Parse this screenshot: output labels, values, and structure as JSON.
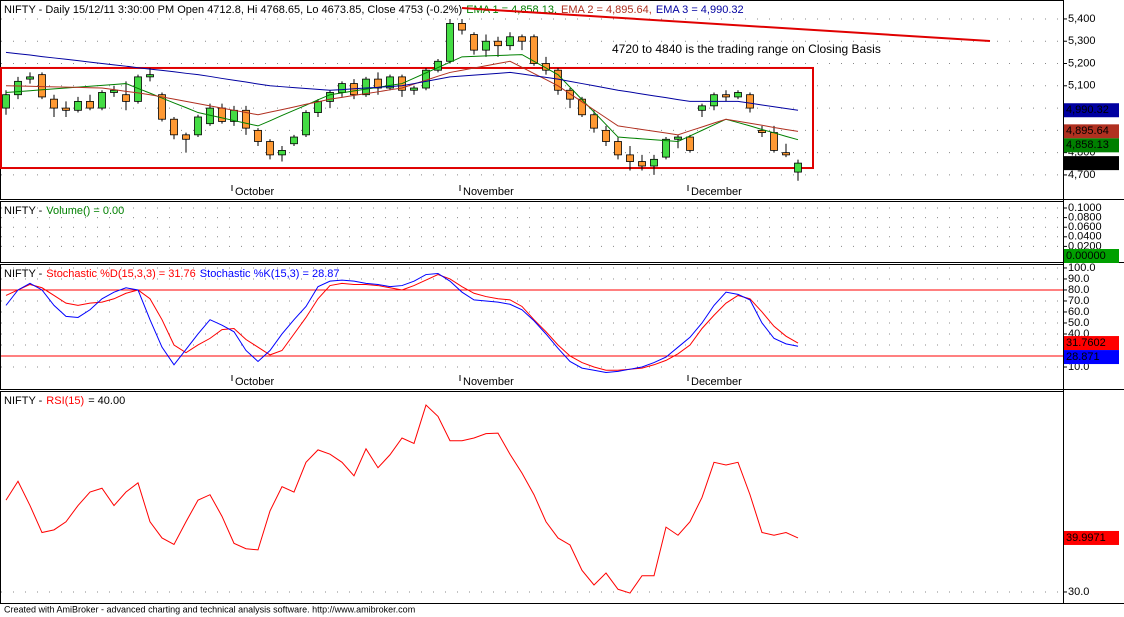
{
  "chart_data": [
    {
      "type": "candlestick",
      "title": "NIFTY - Daily 15/12/11 3:30:00 PM Open 4712.8, Hi 4768.65, Lo 4673.85, Close 4753 (-0.2%)",
      "categories": [
        null,
        null,
        null,
        null,
        null,
        null,
        null,
        null,
        null,
        null,
        null,
        null,
        null,
        null,
        null,
        null,
        null,
        null,
        null,
        "October",
        null,
        null,
        null,
        null,
        null,
        null,
        null,
        null,
        null,
        null,
        null,
        null,
        null,
        null,
        null,
        null,
        null,
        null,
        "November",
        null,
        null,
        null,
        null,
        null,
        null,
        null,
        null,
        null,
        null,
        null,
        null,
        null,
        null,
        null,
        null,
        null,
        null,
        "December",
        null,
        null,
        null,
        null,
        null,
        null,
        null,
        null,
        null
      ],
      "open": [
        5000,
        5060,
        5130,
        5150,
        5040,
        5000,
        4990,
        5030,
        5000,
        5070,
        5060,
        5030,
        5140,
        5060,
        4950,
        4880,
        4880,
        4930,
        5000,
        4940,
        4990,
        4900,
        4850,
        4790,
        4840,
        4880,
        4980,
        5030,
        5070,
        5110,
        5060,
        5130,
        5090,
        5140,
        5080,
        5090,
        5170,
        5210,
        5380,
        5330,
        5260,
        5300,
        5280,
        5320,
        5320,
        5200,
        5170,
        5080,
        5040,
        4970,
        4900,
        4850,
        4790,
        4760,
        4740,
        4780,
        4860,
        4870,
        4990,
        5010,
        5060,
        5050,
        5060,
        4900,
        4890,
        4800,
        4712.8
      ],
      "high": [
        5080,
        5140,
        5160,
        5160,
        5060,
        5030,
        5050,
        5060,
        5080,
        5100,
        5120,
        5150,
        5180,
        5070,
        4960,
        4890,
        4970,
        5020,
        5020,
        5010,
        5010,
        4910,
        4860,
        4830,
        4880,
        4990,
        5040,
        5080,
        5120,
        5130,
        5140,
        5160,
        5150,
        5150,
        5100,
        5180,
        5220,
        5400,
        5400,
        5340,
        5330,
        5320,
        5340,
        5330,
        5330,
        5230,
        5180,
        5090,
        5050,
        4990,
        4920,
        4870,
        4830,
        4790,
        4790,
        4870,
        4880,
        4880,
        5020,
        5070,
        5080,
        5080,
        5070,
        4920,
        4920,
        4840,
        4768.65
      ],
      "low": [
        4970,
        5040,
        5110,
        5040,
        4960,
        4960,
        4980,
        4990,
        4990,
        5050,
        4990,
        5020,
        5120,
        4940,
        4860,
        4800,
        4870,
        4920,
        4930,
        4920,
        4880,
        4830,
        4770,
        4760,
        4830,
        4870,
        4960,
        5000,
        5050,
        5040,
        5050,
        5060,
        5080,
        5050,
        5060,
        5080,
        5160,
        5200,
        5330,
        5240,
        5230,
        5230,
        5260,
        5260,
        5190,
        5150,
        5060,
        5000,
        4960,
        4890,
        4830,
        4770,
        4720,
        4720,
        4700,
        4770,
        4820,
        4800,
        4960,
        4990,
        5030,
        5040,
        4980,
        4870,
        4800,
        4780,
        4673.85
      ],
      "close": [
        5060,
        5120,
        5140,
        5050,
        5000,
        4990,
        5030,
        5000,
        5070,
        5080,
        5030,
        5140,
        5150,
        4950,
        4880,
        4860,
        4960,
        5000,
        4940,
        4990,
        4910,
        4850,
        4790,
        4810,
        4870,
        4980,
        5030,
        5070,
        5110,
        5060,
        5130,
        5090,
        5140,
        5080,
        5090,
        5170,
        5210,
        5380,
        5350,
        5260,
        5300,
        5280,
        5320,
        5300,
        5200,
        5170,
        5080,
        5040,
        4970,
        4910,
        4850,
        4790,
        4760,
        4740,
        4770,
        4860,
        4870,
        4810,
        5010,
        5060,
        5050,
        5070,
        5000,
        4890,
        4810,
        4790,
        4753
      ],
      "close_label": "4,753",
      "color_up": "#44dd44",
      "color_down": "#ff9933",
      "series": [
        {
          "name": "EMA 1 = 4,858.13,",
          "color": "#008000",
          "value_label": "4,858.13",
          "values": [
            5070,
            5074,
            5078,
            5082,
            5086,
            5090,
            5094,
            5098,
            5102,
            5106,
            5110,
            5088,
            5067,
            5045,
            5023,
            5002,
            4980,
            4968,
            4956,
            4944,
            4932,
            4920,
            4943,
            4967,
            4990,
            5013,
            5037,
            5060,
            5068,
            5077,
            5085,
            5093,
            5102,
            5110,
            5134,
            5158,
            5182,
            5206,
            5230,
            5232,
            5234,
            5236,
            5238,
            5240,
            5210,
            5180,
            5150,
            5094,
            5038,
            4982,
            4926,
            4870,
            4866,
            4862,
            4858,
            4854,
            4850,
            4875,
            4900,
            4925,
            4950,
            4935,
            4920,
            4904,
            4889,
            4873,
            4858.13
          ]
        },
        {
          "name": "EMA 2 = 4,895.64,",
          "color": "#b03020",
          "value_label": "4,895.64",
          "values": [
            5100,
            5099,
            5098,
            5096,
            5095,
            5094,
            5093,
            5091,
            5090,
            5083,
            5075,
            5068,
            5060,
            5050,
            5040,
            5030,
            5020,
            5010,
            5000,
            4990,
            4980,
            4970,
            4982,
            4993,
            5005,
            5017,
            5028,
            5040,
            5048,
            5057,
            5065,
            5073,
            5082,
            5090,
            5108,
            5125,
            5143,
            5160,
            5170,
            5180,
            5190,
            5200,
            5210,
            5183,
            5155,
            5128,
            5100,
            5064,
            5028,
            4992,
            4956,
            4920,
            4912,
            4904,
            4896,
            4888,
            4880,
            4898,
            4915,
            4933,
            4950,
            4941,
            4932,
            4923,
            4913,
            4904,
            4895.64
          ]
        },
        {
          "name": "EMA 3 = 4,990.32",
          "color": "#0000a0",
          "value_label": "4,990.32",
          "values": [
            5250,
            5244,
            5238,
            5231,
            5225,
            5219,
            5213,
            5206,
            5200,
            5194,
            5188,
            5181,
            5175,
            5169,
            5163,
            5156,
            5150,
            5142,
            5133,
            5125,
            5117,
            5108,
            5100,
            5096,
            5092,
            5088,
            5084,
            5080,
            5083,
            5087,
            5090,
            5093,
            5097,
            5100,
            5110,
            5120,
            5130,
            5140,
            5144,
            5148,
            5152,
            5156,
            5160,
            5153,
            5145,
            5138,
            5130,
            5120,
            5110,
            5100,
            5090,
            5080,
            5072,
            5063,
            5055,
            5047,
            5038,
            5030,
            5030,
            5030,
            5030,
            5030,
            5022,
            5014,
            5006,
            4998,
            4990.32
          ]
        }
      ],
      "annotation": {
        "text": "4720 to 4840 is the trading range on Closing Basis",
        "color": "#e00000"
      },
      "range_box": {
        "ylim": [
          4731,
          5180
        ],
        "color": "#e00000"
      },
      "trendline": {
        "x": [
          38,
          82
        ],
        "y": [
          5449,
          5301
        ],
        "color": "#e00000"
      },
      "ylim": [
        4592,
        5485
      ],
      "yticks": [
        {
          "value": 4700,
          "label": "4,700"
        },
        {
          "value": 4800,
          "label": "4,800"
        },
        {
          "value": 4900,
          "label": "4,900"
        },
        {
          "value": 5000,
          "label": "5,000"
        },
        {
          "value": 5100,
          "label": "5,100"
        },
        {
          "value": 5200,
          "label": "5,200"
        },
        {
          "value": 5300,
          "label": "5,300"
        },
        {
          "value": 5400,
          "label": "5,400"
        }
      ],
      "grid": true
    },
    {
      "type": "volume",
      "title": "NIFTY -",
      "series": [
        {
          "name": "Volume() = 0.00",
          "color": "#008000"
        }
      ],
      "last_value": 0,
      "last_value_label": "0.00000",
      "last_value_color": "#00a000",
      "ylim": [
        -0.0125,
        0.1146
      ],
      "yticks": [
        {
          "value": 0.02,
          "label": "0.0200"
        },
        {
          "value": 0.04,
          "label": "0.0400"
        },
        {
          "value": 0.06,
          "label": "0.0600"
        },
        {
          "value": 0.08,
          "label": "0.0800"
        },
        {
          "value": 0.1,
          "label": "0.1000"
        }
      ],
      "grid": true
    },
    {
      "type": "line",
      "title": "NIFTY -",
      "categories": [
        null,
        null,
        null,
        null,
        null,
        null,
        null,
        null,
        null,
        null,
        null,
        null,
        null,
        null,
        null,
        null,
        null,
        null,
        null,
        "October",
        null,
        null,
        null,
        null,
        null,
        null,
        null,
        null,
        null,
        null,
        null,
        null,
        null,
        null,
        null,
        null,
        null,
        null,
        "November",
        null,
        null,
        null,
        null,
        null,
        null,
        null,
        null,
        null,
        null,
        null,
        null,
        null,
        null,
        null,
        null,
        null,
        null,
        "December",
        null,
        null,
        null,
        null,
        null,
        null,
        null,
        null,
        null
      ],
      "series": [
        {
          "name": "Stochastic %D(15,3,3) = 31.76",
          "color": "#ff0000",
          "value_label": "31.7602",
          "values": [
            75,
            80,
            85,
            82,
            75,
            68,
            66,
            68,
            69,
            72,
            77,
            80,
            72,
            53,
            30,
            23,
            30,
            36,
            44,
            45,
            35,
            28,
            21,
            25,
            40,
            55,
            72,
            84,
            86,
            85,
            85,
            84,
            82,
            80,
            84,
            89,
            94,
            90,
            83,
            77,
            74,
            72,
            71,
            65,
            53,
            42,
            30,
            20,
            14,
            10,
            7,
            7,
            8,
            9,
            12,
            16,
            22,
            30,
            45,
            57,
            68,
            75,
            72,
            60,
            47,
            38,
            31.76
          ]
        },
        {
          "name": "Stochastic %K(15,3) = 28.87",
          "color": "#0000ff",
          "value_label": "28.871",
          "values": [
            66,
            80,
            86,
            80,
            66,
            56,
            55,
            62,
            72,
            78,
            82,
            80,
            53,
            28,
            12,
            26,
            40,
            53,
            48,
            42,
            25,
            15,
            25,
            40,
            53,
            65,
            83,
            88,
            89,
            88,
            86,
            85,
            83,
            84,
            88,
            94,
            95,
            88,
            78,
            71,
            70,
            69,
            67,
            62,
            52,
            40,
            27,
            15,
            9,
            7,
            5,
            6,
            8,
            10,
            14,
            19,
            28,
            37,
            50,
            66,
            78,
            76,
            71,
            50,
            36,
            31,
            28.87
          ]
        }
      ],
      "reference_lines": [
        80,
        20
      ],
      "reference_color": "#ff0000",
      "ylim": [
        -10,
        103.6
      ],
      "yticks": [
        {
          "value": 10,
          "label": "10.0"
        },
        {
          "value": 20,
          "label": "20.0"
        },
        {
          "value": 30,
          "label": "30.0"
        },
        {
          "value": 40,
          "label": "40.0"
        },
        {
          "value": 50,
          "label": "50.0"
        },
        {
          "value": 60,
          "label": "60.0"
        },
        {
          "value": 70,
          "label": "70.0"
        },
        {
          "value": 80,
          "label": "80.0"
        },
        {
          "value": 90,
          "label": "90.0"
        },
        {
          "value": 100,
          "label": "100.0"
        }
      ],
      "grid": true
    },
    {
      "type": "line",
      "title": "NIFTY -",
      "subtitle": "= 40.00",
      "series": [
        {
          "name": "RSI(15)",
          "color": "#ff0000",
          "value_label": "39.9971",
          "values": [
            47,
            50.5,
            46,
            41,
            41.5,
            43,
            46,
            48.5,
            49.2,
            46,
            48.5,
            50.2,
            43,
            40,
            38.8,
            43,
            47,
            48,
            44,
            39,
            38,
            37.8,
            45,
            49.5,
            48.5,
            54,
            56.3,
            55.5,
            54,
            51.5,
            56.5,
            53,
            55.4,
            58.5,
            57.5,
            64.6,
            62.5,
            58,
            58,
            58.5,
            59.3,
            59.4,
            55.5,
            52,
            48,
            43,
            40,
            38.7,
            34,
            31.3,
            33.5,
            30.5,
            29.8,
            33,
            33,
            42,
            40.5,
            43,
            47.5,
            54,
            53.5,
            54,
            48,
            41,
            40.5,
            41,
            39.9971
          ]
        }
      ],
      "ylim": [
        27.96,
        67.2
      ],
      "yticks": [
        {
          "value": 30,
          "label": "30.0"
        }
      ],
      "grid": true
    }
  ],
  "footer": "Created with AmiBroker - advanced charting and technical analysis software. http://www.amibroker.com"
}
